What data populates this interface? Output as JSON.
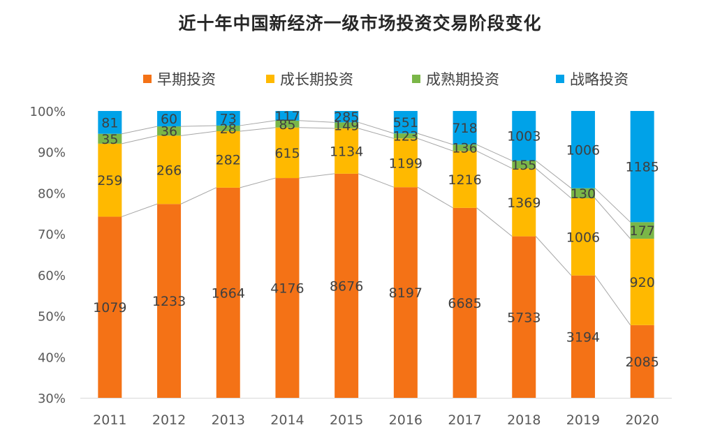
{
  "chart_data": {
    "type": "bar",
    "stacked": true,
    "normalized": true,
    "title": "近十年中国新经济一级市场投资交易阶段变化",
    "xlabel": "",
    "ylabel": "",
    "ylim": [
      30,
      100
    ],
    "y_ticks": [
      "30%",
      "40%",
      "50%",
      "60%",
      "70%",
      "80%",
      "90%",
      "100%"
    ],
    "y_tick_values": [
      30,
      40,
      50,
      60,
      70,
      80,
      90,
      100
    ],
    "categories": [
      "2011",
      "2012",
      "2013",
      "2014",
      "2015",
      "2016",
      "2017",
      "2018",
      "2019",
      "2020"
    ],
    "legend_position": "top",
    "series": [
      {
        "name": "早期投资",
        "color": "#F47216",
        "values": [
          1079,
          1233,
          1664,
          4176,
          8676,
          8197,
          6685,
          5733,
          3194,
          2085
        ]
      },
      {
        "name": "成长期投资",
        "color": "#FFB900",
        "values": [
          259,
          266,
          282,
          615,
          1134,
          1199,
          1216,
          1369,
          1006,
          920
        ]
      },
      {
        "name": "成熟期投资",
        "color": "#7AB648",
        "values": [
          35,
          36,
          28,
          85,
          149,
          123,
          136,
          155,
          130,
          177
        ]
      },
      {
        "name": "战略投资",
        "color": "#00A2E8",
        "values": [
          81,
          60,
          73,
          117,
          285,
          551,
          718,
          1003,
          1006,
          1185
        ]
      }
    ],
    "series_lines": true,
    "grid": false
  }
}
